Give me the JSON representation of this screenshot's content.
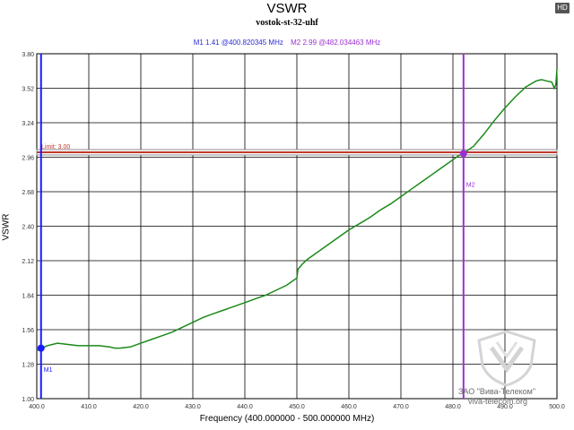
{
  "header": {
    "title": "VSWR",
    "subtitle": "vostok-st-32-uhf",
    "badge": "HD"
  },
  "markers": {
    "m1_readout": "M1  1.41 @400.820345 MHz",
    "m2_readout": "M2  2.99 @482.034463 MHz",
    "m1": {
      "label": "M1",
      "freq": 400.820345,
      "value": 1.41,
      "color": "#1a1aff"
    },
    "m2": {
      "label": "M2",
      "freq": 482.034463,
      "value": 2.99,
      "color": "#9b30d0"
    }
  },
  "limit": {
    "label": "Limit: 3.00",
    "value": 3.0,
    "color": "#c0392b"
  },
  "watermark": {
    "company": "ЗАО \"Вива-Телеком\"",
    "site": "viva-telecom.org"
  },
  "chart_data": {
    "type": "line",
    "title": "VSWR",
    "subtitle": "vostok-st-32-uhf",
    "xlabel": "Frequency (400.000000 - 500.000000 MHz)",
    "ylabel": "VSWR",
    "xlim": [
      400,
      500
    ],
    "ylim": [
      1.0,
      3.8
    ],
    "grid": true,
    "line_color": "#1a8a1a",
    "x_ticks": [
      400,
      410,
      420,
      430,
      440,
      450,
      460,
      470,
      480,
      490,
      500
    ],
    "x_tick_labels": [
      "400.0",
      "410.0",
      "420.0",
      "430.0",
      "440.0",
      "450.0",
      "460.0",
      "470.0",
      "480.0",
      "490.0",
      "500.0"
    ],
    "y_ticks": [
      1.0,
      1.28,
      1.56,
      1.84,
      2.12,
      2.4,
      2.68,
      2.96,
      3.24,
      3.52,
      3.8
    ],
    "y_tick_labels": [
      "1.00",
      "1.28",
      "1.56",
      "1.84",
      "2.12",
      "2.40",
      "2.68",
      "2.96",
      "3.24",
      "3.52",
      "3.80"
    ],
    "series": [
      {
        "name": "VSWR",
        "x": [
          400,
          401,
          402,
          403,
          404,
          406,
          408,
          410,
          412,
          414,
          415,
          416,
          418,
          420,
          422,
          424,
          426,
          428,
          430,
          432,
          434,
          436,
          438,
          440,
          442,
          444,
          446,
          448,
          450,
          450.2,
          451,
          452,
          454,
          456,
          458,
          460,
          462,
          464,
          466,
          468,
          470,
          472,
          474,
          476,
          478,
          480,
          481,
          482,
          483,
          484,
          486,
          488,
          490,
          492,
          494,
          496,
          497,
          498,
          499,
          499.5,
          499.8,
          500
        ],
        "values": [
          1.39,
          1.41,
          1.43,
          1.44,
          1.45,
          1.44,
          1.43,
          1.43,
          1.43,
          1.42,
          1.41,
          1.41,
          1.42,
          1.45,
          1.48,
          1.51,
          1.54,
          1.58,
          1.62,
          1.66,
          1.69,
          1.72,
          1.75,
          1.78,
          1.81,
          1.84,
          1.88,
          1.92,
          1.98,
          2.05,
          2.09,
          2.13,
          2.19,
          2.25,
          2.31,
          2.37,
          2.42,
          2.47,
          2.53,
          2.58,
          2.64,
          2.7,
          2.76,
          2.82,
          2.88,
          2.94,
          2.97,
          2.99,
          3.02,
          3.05,
          3.15,
          3.26,
          3.36,
          3.45,
          3.53,
          3.58,
          3.59,
          3.58,
          3.57,
          3.52,
          3.55,
          3.68
        ]
      }
    ]
  }
}
